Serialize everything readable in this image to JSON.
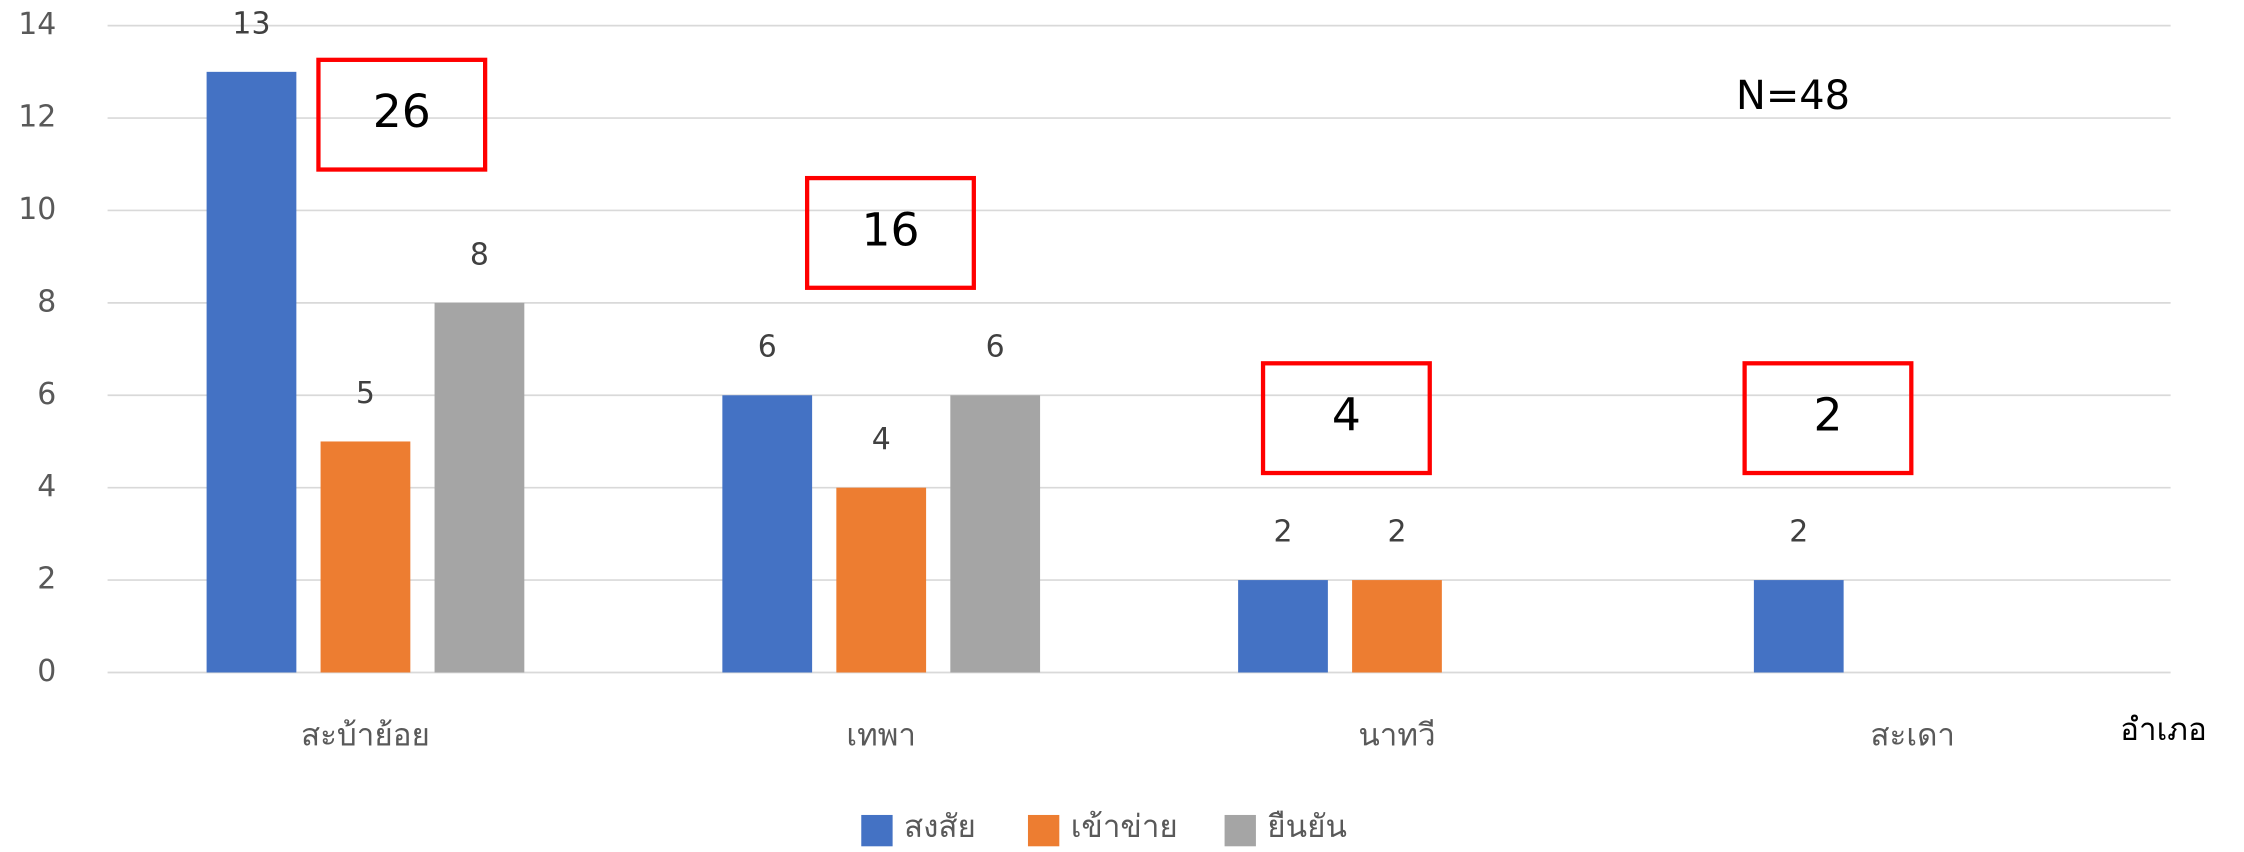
{
  "chart_data": {
    "type": "bar",
    "categories": [
      "สะบ้าย้อย",
      "เทพา",
      "นาทวี",
      "สะเดา"
    ],
    "series": [
      {
        "name": "สงสัย",
        "color": "#4472c4",
        "values": [
          13,
          6,
          2,
          2
        ]
      },
      {
        "name": "เข้าข่าย",
        "color": "#ed7d31",
        "values": [
          5,
          4,
          2,
          null
        ]
      },
      {
        "name": "ยืนยัน",
        "color": "#a5a5a5",
        "values": [
          8,
          6,
          null,
          null
        ]
      }
    ],
    "ylim": [
      0,
      14
    ],
    "yticks": [
      0,
      2,
      4,
      6,
      8,
      10,
      12,
      14
    ],
    "grid": true,
    "x_label": "อำเภอ",
    "annotations": [
      "26",
      "16",
      "4",
      "2",
      "N=48"
    ],
    "legend": "bottom"
  }
}
